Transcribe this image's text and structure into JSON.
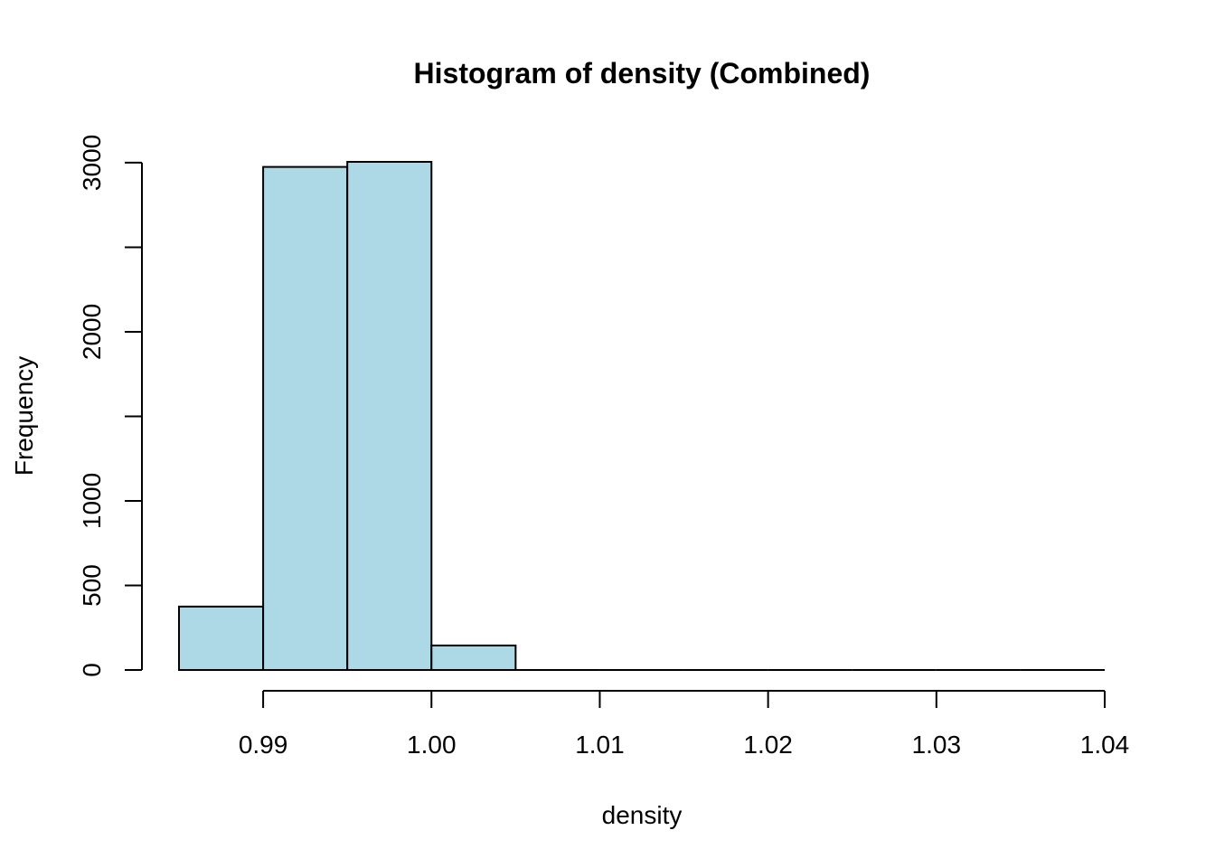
{
  "chart_data": {
    "type": "bar",
    "title": "Histogram of density (Combined)",
    "xlabel": "density",
    "ylabel": "Frequency",
    "bin_edges": [
      0.985,
      0.99,
      0.995,
      1.0,
      1.005,
      1.01,
      1.015,
      1.02,
      1.025,
      1.03,
      1.035,
      1.04
    ],
    "values": [
      375,
      2975,
      3005,
      145,
      0,
      0,
      0,
      0,
      0,
      0,
      0
    ],
    "bar_color": "#add8e6",
    "xlim": [
      0.985,
      1.04
    ],
    "ylim": [
      0,
      3005
    ],
    "x_ticks": [
      0.99,
      1.0,
      1.01,
      1.02,
      1.03,
      1.04
    ],
    "x_tick_labels": [
      "0.99",
      "1.00",
      "1.01",
      "1.02",
      "1.03",
      "1.04"
    ],
    "y_ticks": [
      0,
      500,
      1000,
      1500,
      2000,
      2500,
      3000
    ],
    "y_tick_labels": [
      "0",
      "500",
      "1000",
      "",
      "2000",
      "",
      "3000"
    ],
    "grid": false,
    "legend": "none"
  }
}
